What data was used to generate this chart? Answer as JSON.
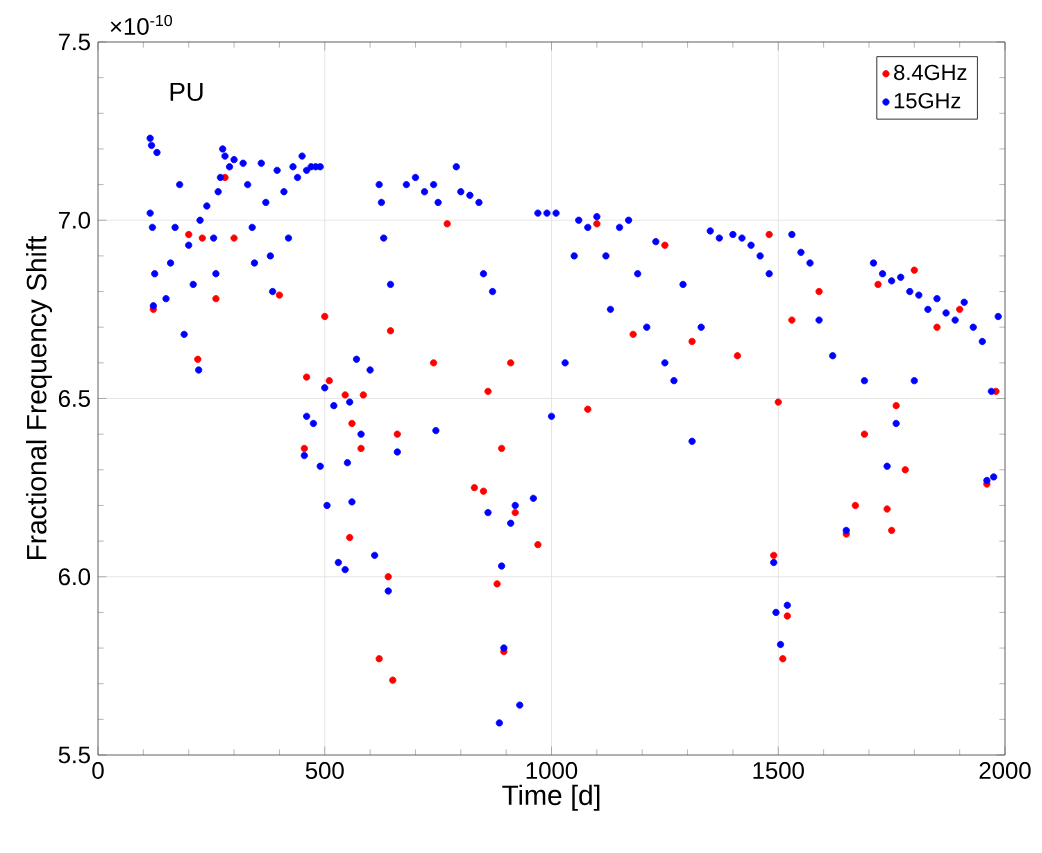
{
  "chart_data": {
    "type": "scatter",
    "xlabel": "Time [d]",
    "ylabel": "Fractional Frequency Shift",
    "annotations": [
      "PU",
      "×10$^{-10}$"
    ],
    "xlim": [
      0,
      2000
    ],
    "ylim": [
      5.5,
      7.5
    ],
    "xticks": [
      0,
      500,
      1000,
      1500,
      2000
    ],
    "yticks": [
      5.5,
      {
        "value": 6,
        "label": "6.0"
      },
      6.5,
      {
        "value": 7,
        "label": "7.0"
      },
      7.5
    ],
    "grid": true,
    "legend": "top right",
    "marker": "circle",
    "series": [
      {
        "name": "8.4GHz",
        "color": "#ff0000",
        "x": [
          122,
          200,
          220,
          230,
          260,
          280,
          300,
          400,
          455,
          460,
          500,
          510,
          545,
          555,
          560,
          580,
          585,
          620,
          640,
          645,
          650,
          660,
          740,
          770,
          830,
          850,
          860,
          880,
          890,
          895,
          910,
          920,
          970,
          1080,
          1100,
          1180,
          1250,
          1310,
          1410,
          1480,
          1490,
          1500,
          1510,
          1520,
          1530,
          1590,
          1650,
          1670,
          1690,
          1720,
          1740,
          1750,
          1760,
          1780,
          1800,
          1850,
          1900,
          1960,
          1980
        ],
        "values": [
          6.75,
          6.96,
          6.61,
          6.95,
          6.78,
          7.12,
          6.95,
          6.79,
          6.36,
          6.56,
          6.73,
          6.55,
          6.51,
          6.11,
          6.43,
          6.36,
          6.51,
          5.77,
          6.0,
          6.69,
          5.71,
          6.4,
          6.6,
          6.99,
          6.25,
          6.24,
          6.52,
          5.98,
          6.36,
          5.79,
          6.6,
          6.18,
          6.09,
          6.47,
          6.99,
          6.68,
          6.93,
          6.66,
          6.62,
          6.96,
          6.06,
          6.49,
          5.77,
          5.89,
          6.72,
          6.8,
          6.12,
          6.2,
          6.4,
          6.82,
          6.19,
          6.13,
          6.48,
          6.3,
          6.86,
          6.7,
          6.75,
          6.26,
          6.52
        ]
      },
      {
        "name": "15GHz",
        "color": "#0000ff",
        "x": [
          115,
          118,
          130,
          115,
          120,
          125,
          122,
          150,
          160,
          170,
          180,
          190,
          200,
          210,
          225,
          222,
          240,
          255,
          260,
          265,
          270,
          275,
          280,
          290,
          300,
          320,
          330,
          340,
          345,
          360,
          370,
          380,
          385,
          395,
          410,
          420,
          430,
          440,
          450,
          460,
          470,
          480,
          490,
          455,
          460,
          475,
          490,
          500,
          505,
          520,
          530,
          545,
          550,
          555,
          560,
          570,
          580,
          600,
          610,
          620,
          625,
          630,
          640,
          645,
          660,
          680,
          700,
          720,
          740,
          745,
          750,
          790,
          800,
          820,
          840,
          850,
          860,
          870,
          890,
          895,
          885,
          910,
          920,
          930,
          960,
          970,
          990,
          1010,
          1000,
          1030,
          1050,
          1060,
          1080,
          1100,
          1120,
          1130,
          1150,
          1170,
          1190,
          1210,
          1230,
          1250,
          1270,
          1290,
          1310,
          1330,
          1350,
          1370,
          1400,
          1420,
          1440,
          1460,
          1480,
          1490,
          1495,
          1505,
          1520,
          1530,
          1550,
          1570,
          1590,
          1620,
          1650,
          1690,
          1710,
          1730,
          1740,
          1750,
          1760,
          1770,
          1790,
          1800,
          1810,
          1830,
          1850,
          1870,
          1890,
          1910,
          1930,
          1950,
          1960,
          1970,
          1975,
          1985
        ],
        "values": [
          7.23,
          7.21,
          7.19,
          7.02,
          6.98,
          6.85,
          6.76,
          6.78,
          6.88,
          6.98,
          7.1,
          6.68,
          6.93,
          6.82,
          7.0,
          6.58,
          7.04,
          6.95,
          6.85,
          7.08,
          7.12,
          7.2,
          7.18,
          7.15,
          7.17,
          7.16,
          7.1,
          6.98,
          6.88,
          7.16,
          7.05,
          6.9,
          6.8,
          7.14,
          7.08,
          6.95,
          7.15,
          7.12,
          7.18,
          7.14,
          7.15,
          7.15,
          7.15,
          6.34,
          6.45,
          6.43,
          6.31,
          6.53,
          6.2,
          6.48,
          6.04,
          6.02,
          6.32,
          6.49,
          6.21,
          6.61,
          6.4,
          6.58,
          6.06,
          7.1,
          7.05,
          6.95,
          5.96,
          6.82,
          6.35,
          7.1,
          7.12,
          7.08,
          7.1,
          6.41,
          7.05,
          7.15,
          7.08,
          7.07,
          7.05,
          6.85,
          6.18,
          6.8,
          6.03,
          5.8,
          5.59,
          6.15,
          6.2,
          5.64,
          6.22,
          7.02,
          7.02,
          7.02,
          6.45,
          6.6,
          6.9,
          7.0,
          6.98,
          7.01,
          6.9,
          6.75,
          6.98,
          7.0,
          6.85,
          6.7,
          6.94,
          6.6,
          6.55,
          6.82,
          6.38,
          6.7,
          6.97,
          6.95,
          6.96,
          6.95,
          6.93,
          6.9,
          6.85,
          6.04,
          5.9,
          5.81,
          5.92,
          6.96,
          6.91,
          6.88,
          6.72,
          6.62,
          6.13,
          6.55,
          6.88,
          6.85,
          6.31,
          6.83,
          6.43,
          6.84,
          6.8,
          6.55,
          6.79,
          6.75,
          6.78,
          6.74,
          6.72,
          6.77,
          6.7,
          6.66,
          6.27,
          6.52,
          6.28,
          6.73
        ]
      }
    ]
  }
}
